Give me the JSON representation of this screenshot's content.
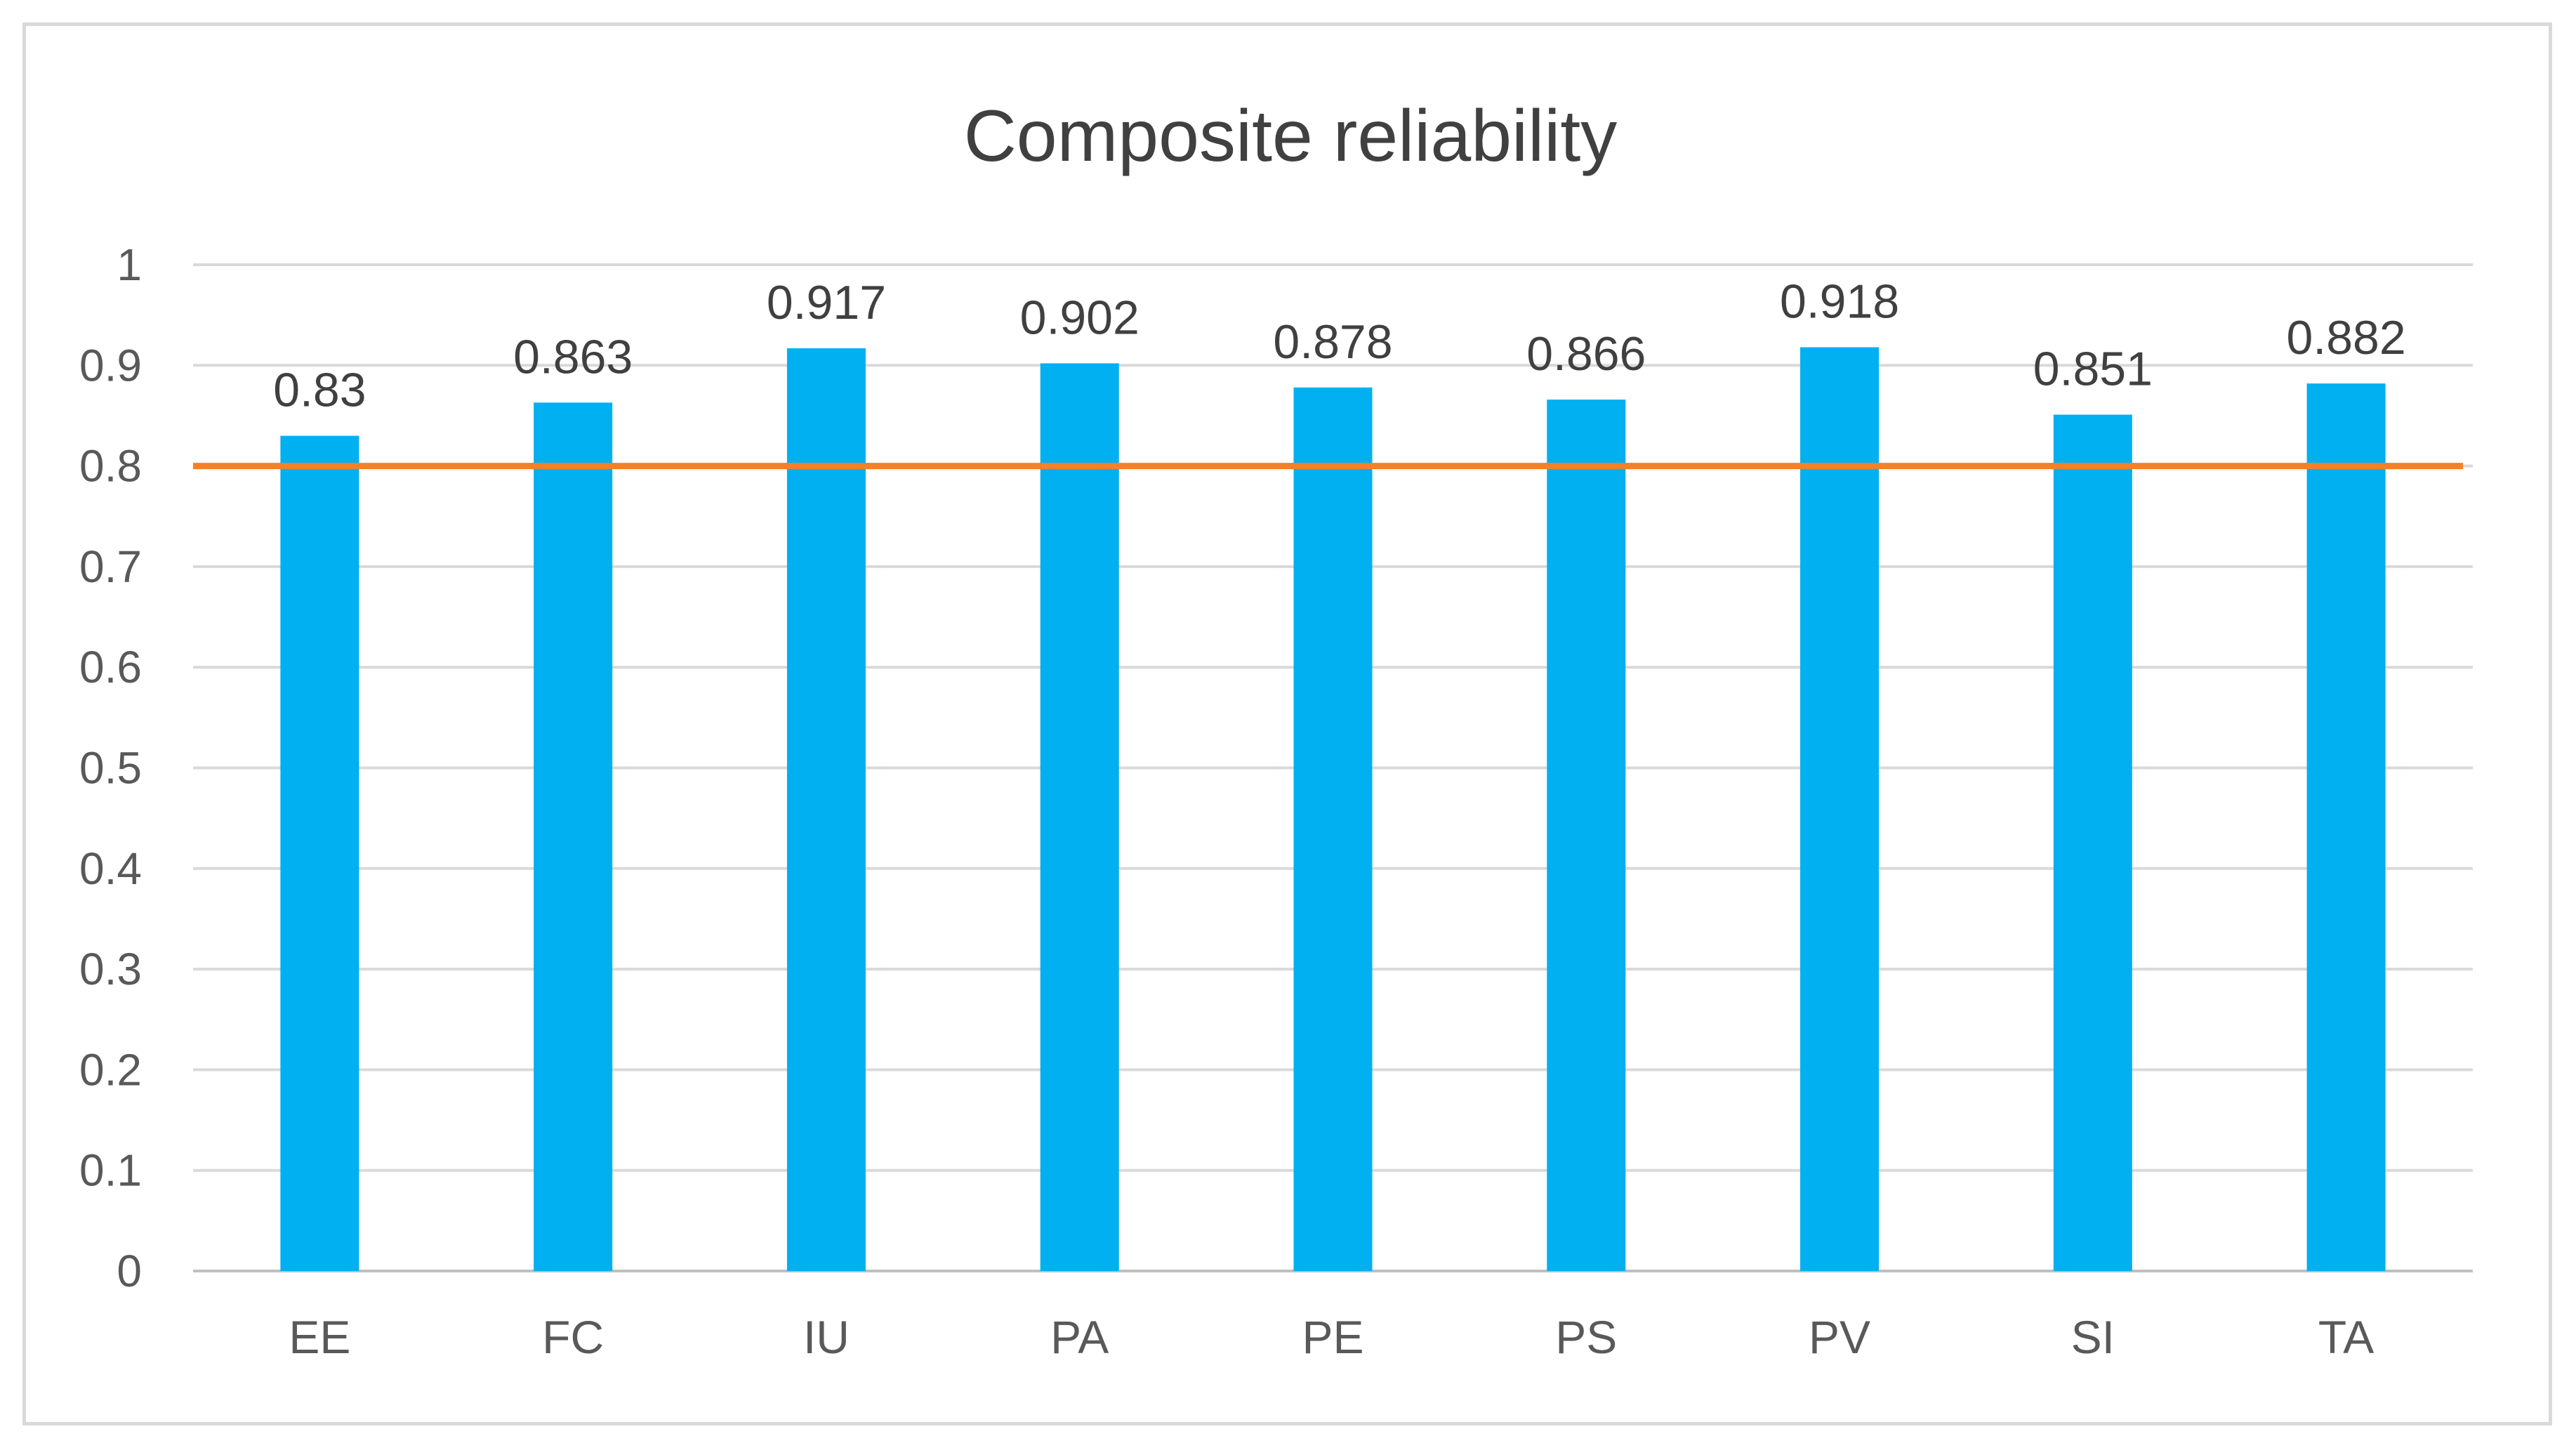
{
  "chart_data": {
    "type": "bar",
    "title": "Composite reliability",
    "xlabel": "",
    "ylabel": "",
    "categories": [
      "EE",
      "FC",
      "IU",
      "PA",
      "PE",
      "PS",
      "PV",
      "SI",
      "TA"
    ],
    "values": [
      0.83,
      0.863,
      0.917,
      0.902,
      0.878,
      0.866,
      0.918,
      0.851,
      0.882
    ],
    "value_labels": [
      "0.83",
      "0.863",
      "0.917",
      "0.902",
      "0.878",
      "0.866",
      "0.918",
      "0.851",
      "0.882"
    ],
    "ylim": [
      0,
      1
    ],
    "yticks": [
      0,
      0.1,
      0.2,
      0.3,
      0.4,
      0.5,
      0.6,
      0.7,
      0.8,
      0.9,
      1
    ],
    "ytick_labels": [
      "0",
      "0.1",
      "0.2",
      "0.3",
      "0.4",
      "0.5",
      "0.6",
      "0.7",
      "0.8",
      "0.9",
      "1"
    ],
    "reference_line": {
      "y": 0.8,
      "color": "#F58025"
    },
    "grid": true,
    "legend": "none",
    "colors": {
      "bar": "#00B0F0",
      "grid": "#d9d9d9",
      "axis": "#bfbfbf"
    }
  }
}
